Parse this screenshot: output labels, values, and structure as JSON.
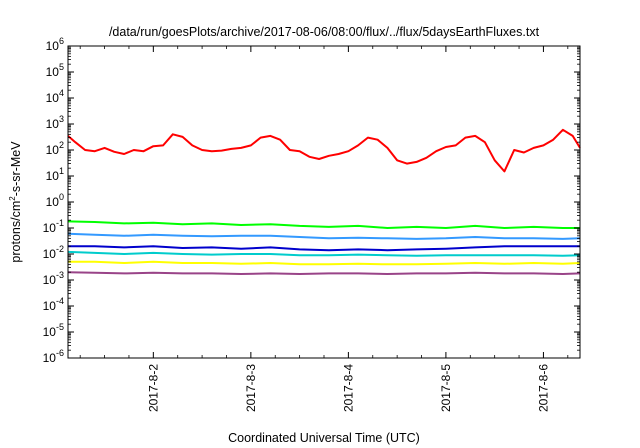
{
  "chart_data": {
    "type": "line",
    "title": "/data/run/goesPlots/archive/2017-08-06/08:00/flux/../flux/5daysEarthFluxes.txt",
    "xlabel": "Coordinated Universal Time (UTC)",
    "ylabel": {
      "prefix": "protons/cm",
      "superscript": "2",
      "suffix": "-s-sr-MeV"
    },
    "y_scale": "log",
    "ylim_exponents": [
      -6,
      6
    ],
    "y_ticks": [
      {
        "base": "10",
        "exp": "6"
      },
      {
        "base": "10",
        "exp": "5"
      },
      {
        "base": "10",
        "exp": "4"
      },
      {
        "base": "10",
        "exp": "3"
      },
      {
        "base": "10",
        "exp": "2"
      },
      {
        "base": "10",
        "exp": "1"
      },
      {
        "base": "10",
        "exp": "0"
      },
      {
        "base": "10",
        "exp": "-1"
      },
      {
        "base": "10",
        "exp": "-2"
      },
      {
        "base": "10",
        "exp": "-3"
      },
      {
        "base": "10",
        "exp": "-4"
      },
      {
        "base": "10",
        "exp": "-5"
      },
      {
        "base": "10",
        "exp": "-6"
      }
    ],
    "x_range_days": [
      "2017-08-01 03:00",
      "2017-08-06 09:00"
    ],
    "x_ticks": [
      "2017-8-2",
      "2017-8-3",
      "2017-8-4",
      "2017-8-5",
      "2017-8-6"
    ],
    "grid": false,
    "legend": "none",
    "series": [
      {
        "color": "#ff0000",
        "x_days": [
          0.125,
          0.2,
          0.3,
          0.4,
          0.5,
          0.6,
          0.7,
          0.8,
          0.9,
          1.0,
          1.1,
          1.2,
          1.3,
          1.4,
          1.5,
          1.6,
          1.7,
          1.8,
          1.9,
          2.0,
          2.1,
          2.2,
          2.3,
          2.4,
          2.5,
          2.6,
          2.7,
          2.8,
          2.9,
          3.0,
          3.1,
          3.2,
          3.3,
          3.4,
          3.5,
          3.6,
          3.7,
          3.8,
          3.9,
          4.0,
          4.1,
          4.2,
          4.3,
          4.4,
          4.5,
          4.6,
          4.7,
          4.8,
          4.9,
          5.0,
          5.1,
          5.2,
          5.3,
          5.375
        ],
        "values": [
          350,
          200,
          100,
          90,
          120,
          85,
          70,
          100,
          90,
          140,
          150,
          400,
          320,
          150,
          100,
          90,
          95,
          110,
          120,
          150,
          300,
          350,
          250,
          100,
          90,
          55,
          45,
          60,
          70,
          90,
          150,
          300,
          250,
          120,
          40,
          30,
          35,
          50,
          90,
          130,
          150,
          300,
          350,
          200,
          40,
          15,
          100,
          80,
          120,
          150,
          250,
          600,
          350,
          120
        ]
      },
      {
        "color": "#00ff00",
        "x_days": [
          0.125,
          0.4,
          0.7,
          1.0,
          1.3,
          1.6,
          1.9,
          2.2,
          2.5,
          2.8,
          3.1,
          3.4,
          3.7,
          4.0,
          4.3,
          4.6,
          4.9,
          5.2,
          5.375
        ],
        "values": [
          0.18,
          0.17,
          0.15,
          0.16,
          0.14,
          0.15,
          0.13,
          0.14,
          0.12,
          0.11,
          0.12,
          0.1,
          0.11,
          0.1,
          0.12,
          0.1,
          0.11,
          0.1,
          0.1
        ]
      },
      {
        "color": "#3399ff",
        "x_days": [
          0.125,
          0.4,
          0.7,
          1.0,
          1.3,
          1.6,
          1.9,
          2.2,
          2.5,
          2.8,
          3.1,
          3.4,
          3.7,
          4.0,
          4.3,
          4.6,
          4.9,
          5.2,
          5.375
        ],
        "values": [
          0.06,
          0.055,
          0.05,
          0.055,
          0.05,
          0.048,
          0.05,
          0.05,
          0.045,
          0.04,
          0.042,
          0.04,
          0.038,
          0.04,
          0.045,
          0.04,
          0.04,
          0.038,
          0.04
        ]
      },
      {
        "color": "#0000cc",
        "x_days": [
          0.125,
          0.4,
          0.7,
          1.0,
          1.3,
          1.6,
          1.9,
          2.2,
          2.5,
          2.8,
          3.1,
          3.4,
          3.7,
          4.0,
          4.3,
          4.6,
          4.9,
          5.2,
          5.375
        ],
        "values": [
          0.02,
          0.02,
          0.018,
          0.02,
          0.017,
          0.018,
          0.016,
          0.018,
          0.015,
          0.014,
          0.015,
          0.014,
          0.015,
          0.016,
          0.018,
          0.02,
          0.02,
          0.02,
          0.02
        ]
      },
      {
        "color": "#00cccc",
        "x_days": [
          0.125,
          0.4,
          0.7,
          1.0,
          1.3,
          1.6,
          1.9,
          2.2,
          2.5,
          2.8,
          3.1,
          3.4,
          3.7,
          4.0,
          4.3,
          4.6,
          4.9,
          5.2,
          5.375
        ],
        "values": [
          0.012,
          0.011,
          0.01,
          0.011,
          0.01,
          0.0095,
          0.01,
          0.01,
          0.009,
          0.009,
          0.0095,
          0.009,
          0.0085,
          0.009,
          0.009,
          0.009,
          0.009,
          0.0085,
          0.009
        ]
      },
      {
        "color": "#ffff00",
        "x_days": [
          0.125,
          0.4,
          0.7,
          1.0,
          1.3,
          1.6,
          1.9,
          2.2,
          2.5,
          2.8,
          3.1,
          3.4,
          3.7,
          4.0,
          4.3,
          4.6,
          4.9,
          5.2,
          5.375
        ],
        "values": [
          0.005,
          0.005,
          0.0045,
          0.005,
          0.0045,
          0.0045,
          0.0042,
          0.0045,
          0.004,
          0.004,
          0.0042,
          0.004,
          0.004,
          0.0042,
          0.0045,
          0.0042,
          0.0045,
          0.0042,
          0.0045
        ]
      },
      {
        "color": "#994488",
        "x_days": [
          0.125,
          0.4,
          0.7,
          1.0,
          1.3,
          1.6,
          1.9,
          2.2,
          2.5,
          2.8,
          3.1,
          3.4,
          3.7,
          4.0,
          4.3,
          4.6,
          4.9,
          5.2,
          5.375
        ],
        "values": [
          0.002,
          0.0019,
          0.0018,
          0.0019,
          0.0018,
          0.0018,
          0.0017,
          0.0018,
          0.0017,
          0.0018,
          0.0018,
          0.0017,
          0.0018,
          0.0018,
          0.0019,
          0.0018,
          0.0018,
          0.0017,
          0.0018
        ]
      }
    ]
  }
}
